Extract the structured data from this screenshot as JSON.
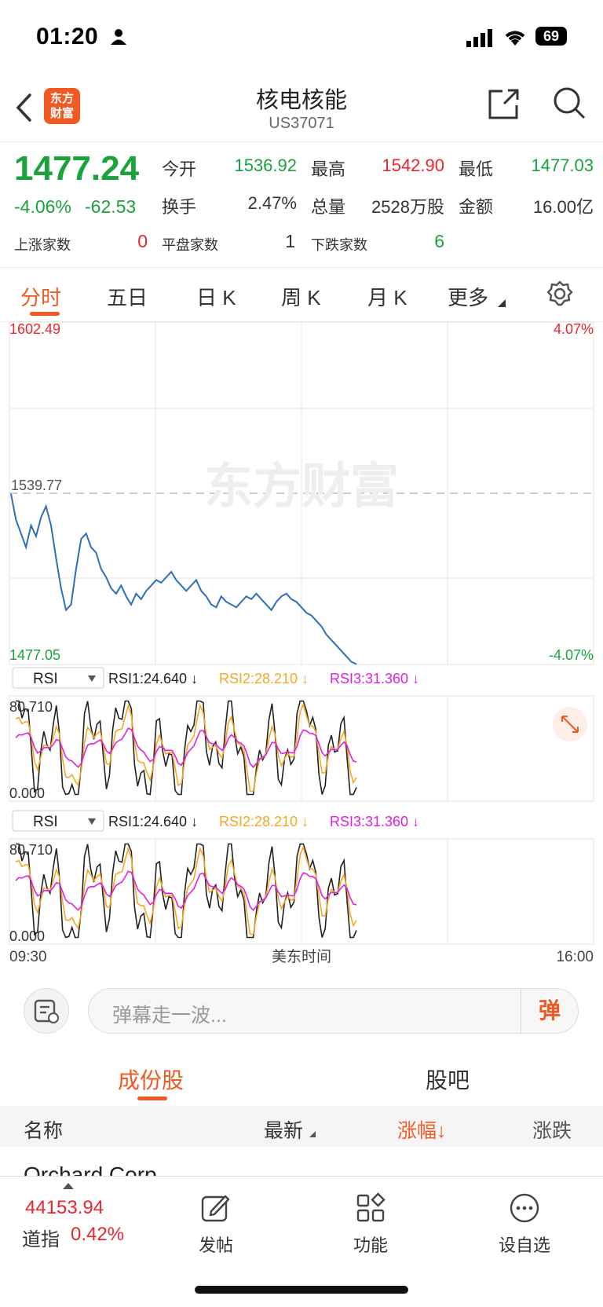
{
  "status_bar": {
    "time": "01:20",
    "battery": "69"
  },
  "header": {
    "title": "核电核能",
    "code": "US37071",
    "logo_text": "东方财富"
  },
  "quote": {
    "price": "1477.24",
    "change_pct": "-4.06%",
    "change_val": "-62.53",
    "stats": [
      {
        "label": "今开",
        "value": "1536.92",
        "color": "green"
      },
      {
        "label": "最高",
        "value": "1542.90",
        "color": "red"
      },
      {
        "label": "最低",
        "value": "1477.03",
        "color": "green"
      },
      {
        "label": "换手",
        "value": "2.47%",
        "color": "dark"
      },
      {
        "label": "总量",
        "value": "2528万股",
        "color": "dark"
      },
      {
        "label": "金额",
        "value": "16.00亿",
        "color": "dark"
      }
    ],
    "breadth": [
      {
        "label": "上涨家数",
        "value": "0",
        "color": "red"
      },
      {
        "label": "平盘家数",
        "value": "1",
        "color": "dark"
      },
      {
        "label": "下跌家数",
        "value": "6",
        "color": "green"
      }
    ]
  },
  "tabs": [
    {
      "label": "分时",
      "active": true
    },
    {
      "label": "五日"
    },
    {
      "label": "日 K"
    },
    {
      "label": "周 K"
    },
    {
      "label": "月 K"
    },
    {
      "label": "更多"
    }
  ],
  "chart": {
    "price_high": "1602.49",
    "pct_high": "4.07%",
    "prev_close": "1539.77",
    "price_low": "1477.05",
    "pct_low": "-4.07%",
    "watermark": "东方财富",
    "time_start": "09:30",
    "time_mid": "美东时间",
    "time_end": "16:00"
  },
  "chart_data": {
    "type": "line",
    "ylim": [
      1477.05,
      1602.49
    ],
    "prev_close": 1539.77,
    "series": [
      {
        "values": [
          1539.5,
          1530,
          1525,
          1520,
          1528,
          1524,
          1531,
          1535,
          1528,
          1516,
          1505,
          1497,
          1499,
          1512,
          1523,
          1525,
          1520,
          1518,
          1512,
          1509,
          1505,
          1503,
          1506,
          1502,
          1499,
          1503,
          1501,
          1504,
          1506,
          1508,
          1507,
          1509,
          1511,
          1508,
          1506,
          1504,
          1506,
          1508,
          1504,
          1502,
          1499,
          1498,
          1502,
          1500,
          1499,
          1498,
          1500,
          1502,
          1501,
          1503,
          1501,
          1499,
          1497,
          1500,
          1502,
          1503,
          1501,
          1500,
          1498,
          1496,
          1495,
          1493,
          1491,
          1488,
          1486,
          1484,
          1482,
          1480,
          1478,
          1477.2
        ]
      }
    ]
  },
  "rsi_panels": [
    {
      "selector": "RSI",
      "rsi1": "RSI1:24.640 ↓",
      "rsi2": "RSI2:28.210 ↓",
      "rsi3": "RSI3:31.360 ↓",
      "max": "80.710",
      "min": "0.000"
    },
    {
      "selector": "RSI",
      "rsi1": "RSI1:24.640 ↓",
      "rsi2": "RSI2:28.210 ↓",
      "rsi3": "RSI3:31.360 ↓",
      "max": "80.710",
      "min": "0.000"
    }
  ],
  "comment": {
    "placeholder": "弹幕走一波...",
    "button": "弹"
  },
  "subtabs": [
    {
      "label": "成份股",
      "active": true
    },
    {
      "label": "股吧"
    }
  ],
  "table_header": {
    "name": "名称",
    "latest": "最新",
    "change_pct": "涨幅↓",
    "change": "涨跌"
  },
  "partial_row": "Orchard Corp",
  "bottom_bar": {
    "index_value": "44153.94",
    "index_name": "道指",
    "index_pct": "0.42%",
    "items": [
      {
        "label": "发帖"
      },
      {
        "label": "功能"
      },
      {
        "label": "设自选"
      }
    ]
  },
  "colors": {
    "accent": "#f05a22",
    "up": "#e8262d",
    "down": "#1aa33b",
    "price_line": "#2e6fb8",
    "rsi1": "#222222",
    "rsi2": "#f5a623",
    "rsi3": "#e020e0"
  }
}
